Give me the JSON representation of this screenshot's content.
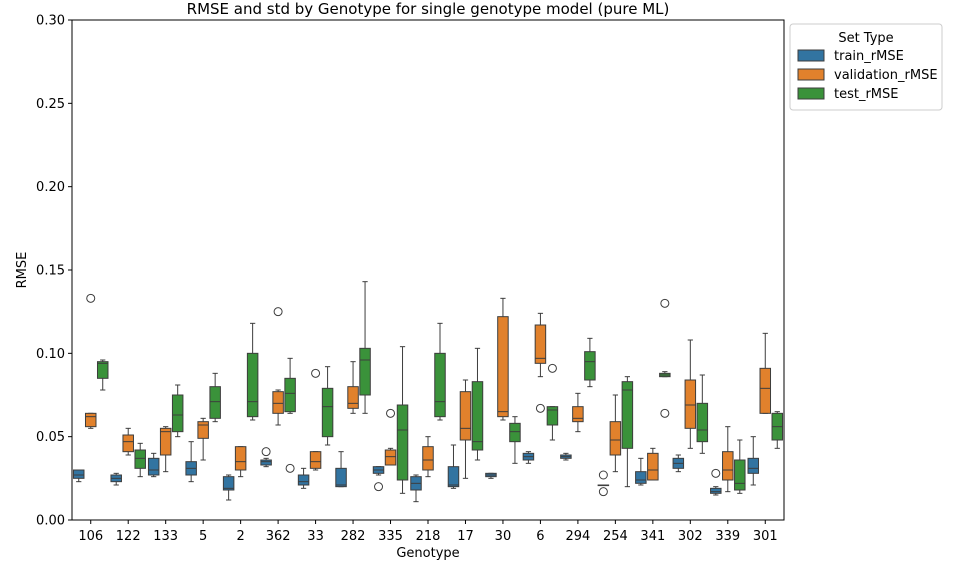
{
  "chart_data": {
    "type": "box",
    "title": "RMSE and std by Genotype for single genotype model (pure ML)",
    "xlabel": "Genotype",
    "ylabel": "RMSE",
    "ylim": [
      0,
      0.3
    ],
    "yticks": [
      "0.00",
      "0.05",
      "0.10",
      "0.15",
      "0.20",
      "0.25",
      "0.30"
    ],
    "grid": false,
    "legend": {
      "title": "Set Type",
      "placement": "outside-top-right"
    },
    "categories": [
      "106",
      "122",
      "133",
      "5",
      "2",
      "362",
      "33",
      "282",
      "335",
      "218",
      "17",
      "30",
      "6",
      "294",
      "254",
      "341",
      "302",
      "339",
      "301"
    ],
    "series": [
      {
        "name": "train_rMSE",
        "color": "#3274a1",
        "boxes": [
          {
            "whislo": 0.023,
            "q1": 0.025,
            "med": 0.027,
            "q3": 0.03,
            "whishi": 0.03,
            "fliers": []
          },
          {
            "whislo": 0.021,
            "q1": 0.023,
            "med": 0.025,
            "q3": 0.027,
            "whishi": 0.028,
            "fliers": []
          },
          {
            "whislo": 0.026,
            "q1": 0.027,
            "med": 0.03,
            "q3": 0.037,
            "whishi": 0.04,
            "fliers": []
          },
          {
            "whislo": 0.023,
            "q1": 0.027,
            "med": 0.031,
            "q3": 0.035,
            "whishi": 0.047,
            "fliers": []
          },
          {
            "whislo": 0.012,
            "q1": 0.018,
            "med": 0.019,
            "q3": 0.026,
            "whishi": 0.027,
            "fliers": []
          },
          {
            "whislo": 0.032,
            "q1": 0.033,
            "med": 0.035,
            "q3": 0.036,
            "whishi": 0.037,
            "fliers": [
              0.041
            ]
          },
          {
            "whislo": 0.019,
            "q1": 0.021,
            "med": 0.023,
            "q3": 0.027,
            "whishi": 0.031,
            "fliers": []
          },
          {
            "whislo": 0.02,
            "q1": 0.02,
            "med": 0.021,
            "q3": 0.031,
            "whishi": 0.041,
            "fliers": []
          },
          {
            "whislo": 0.027,
            "q1": 0.028,
            "med": 0.03,
            "q3": 0.032,
            "whishi": 0.032,
            "fliers": [
              0.02
            ]
          },
          {
            "whislo": 0.011,
            "q1": 0.018,
            "med": 0.022,
            "q3": 0.026,
            "whishi": 0.027,
            "fliers": []
          },
          {
            "whislo": 0.019,
            "q1": 0.02,
            "med": 0.021,
            "q3": 0.032,
            "whishi": 0.045,
            "fliers": []
          },
          {
            "whislo": 0.025,
            "q1": 0.026,
            "med": 0.027,
            "q3": 0.028,
            "whishi": 0.028,
            "fliers": []
          },
          {
            "whislo": 0.034,
            "q1": 0.036,
            "med": 0.038,
            "q3": 0.04,
            "whishi": 0.041,
            "fliers": []
          },
          {
            "whislo": 0.036,
            "q1": 0.037,
            "med": 0.038,
            "q3": 0.039,
            "whishi": 0.04,
            "fliers": []
          },
          {
            "whislo": 0.021,
            "q1": 0.021,
            "med": 0.021,
            "q3": 0.021,
            "whishi": 0.021,
            "fliers": [
              0.017,
              0.027
            ]
          },
          {
            "whislo": 0.021,
            "q1": 0.022,
            "med": 0.024,
            "q3": 0.029,
            "whishi": 0.037,
            "fliers": []
          },
          {
            "whislo": 0.029,
            "q1": 0.031,
            "med": 0.034,
            "q3": 0.037,
            "whishi": 0.039,
            "fliers": []
          },
          {
            "whislo": 0.015,
            "q1": 0.016,
            "med": 0.017,
            "q3": 0.019,
            "whishi": 0.02,
            "fliers": [
              0.028
            ]
          },
          {
            "whislo": 0.021,
            "q1": 0.028,
            "med": 0.031,
            "q3": 0.037,
            "whishi": 0.05,
            "fliers": []
          }
        ]
      },
      {
        "name": "validation_rMSE",
        "color": "#e1812c",
        "boxes": [
          {
            "whislo": 0.055,
            "q1": 0.056,
            "med": 0.062,
            "q3": 0.064,
            "whishi": 0.064,
            "fliers": [
              0.133
            ]
          },
          {
            "whislo": 0.039,
            "q1": 0.041,
            "med": 0.047,
            "q3": 0.051,
            "whishi": 0.055,
            "fliers": []
          },
          {
            "whislo": 0.029,
            "q1": 0.039,
            "med": 0.053,
            "q3": 0.055,
            "whishi": 0.056,
            "fliers": []
          },
          {
            "whislo": 0.036,
            "q1": 0.049,
            "med": 0.057,
            "q3": 0.059,
            "whishi": 0.061,
            "fliers": []
          },
          {
            "whislo": 0.026,
            "q1": 0.03,
            "med": 0.035,
            "q3": 0.044,
            "whishi": 0.044,
            "fliers": []
          },
          {
            "whislo": 0.057,
            "q1": 0.064,
            "med": 0.07,
            "q3": 0.077,
            "whishi": 0.078,
            "fliers": [
              0.125
            ]
          },
          {
            "whislo": 0.03,
            "q1": 0.031,
            "med": 0.035,
            "q3": 0.041,
            "whishi": 0.041,
            "fliers": [
              0.088
            ]
          },
          {
            "whislo": 0.064,
            "q1": 0.067,
            "med": 0.07,
            "q3": 0.08,
            "whishi": 0.095,
            "fliers": []
          },
          {
            "whislo": 0.033,
            "q1": 0.033,
            "med": 0.038,
            "q3": 0.042,
            "whishi": 0.043,
            "fliers": [
              0.064
            ]
          },
          {
            "whislo": 0.026,
            "q1": 0.03,
            "med": 0.036,
            "q3": 0.044,
            "whishi": 0.05,
            "fliers": []
          },
          {
            "whislo": 0.025,
            "q1": 0.048,
            "med": 0.055,
            "q3": 0.077,
            "whishi": 0.084,
            "fliers": []
          },
          {
            "whislo": 0.06,
            "q1": 0.062,
            "med": 0.065,
            "q3": 0.122,
            "whishi": 0.133,
            "fliers": []
          },
          {
            "whislo": 0.086,
            "q1": 0.094,
            "med": 0.097,
            "q3": 0.117,
            "whishi": 0.124,
            "fliers": [
              0.067
            ]
          },
          {
            "whislo": 0.053,
            "q1": 0.059,
            "med": 0.061,
            "q3": 0.068,
            "whishi": 0.076,
            "fliers": []
          },
          {
            "whislo": 0.029,
            "q1": 0.039,
            "med": 0.048,
            "q3": 0.059,
            "whishi": 0.075,
            "fliers": []
          },
          {
            "whislo": 0.024,
            "q1": 0.024,
            "med": 0.03,
            "q3": 0.04,
            "whishi": 0.043,
            "fliers": []
          },
          {
            "whislo": 0.043,
            "q1": 0.055,
            "med": 0.069,
            "q3": 0.084,
            "whishi": 0.108,
            "fliers": []
          },
          {
            "whislo": 0.017,
            "q1": 0.024,
            "med": 0.03,
            "q3": 0.041,
            "whishi": 0.056,
            "fliers": []
          },
          {
            "whislo": 0.064,
            "q1": 0.064,
            "med": 0.079,
            "q3": 0.091,
            "whishi": 0.112,
            "fliers": []
          }
        ]
      },
      {
        "name": "test_rMSE",
        "color": "#3a923a",
        "boxes": [
          {
            "whislo": 0.078,
            "q1": 0.085,
            "med": 0.094,
            "q3": 0.095,
            "whishi": 0.096,
            "fliers": []
          },
          {
            "whislo": 0.026,
            "q1": 0.031,
            "med": 0.037,
            "q3": 0.042,
            "whishi": 0.046,
            "fliers": []
          },
          {
            "whislo": 0.05,
            "q1": 0.053,
            "med": 0.063,
            "q3": 0.075,
            "whishi": 0.081,
            "fliers": []
          },
          {
            "whislo": 0.059,
            "q1": 0.061,
            "med": 0.071,
            "q3": 0.08,
            "whishi": 0.088,
            "fliers": []
          },
          {
            "whislo": 0.06,
            "q1": 0.062,
            "med": 0.071,
            "q3": 0.1,
            "whishi": 0.118,
            "fliers": []
          },
          {
            "whislo": 0.064,
            "q1": 0.065,
            "med": 0.076,
            "q3": 0.085,
            "whishi": 0.097,
            "fliers": [
              0.031
            ]
          },
          {
            "whislo": 0.045,
            "q1": 0.05,
            "med": 0.068,
            "q3": 0.079,
            "whishi": 0.092,
            "fliers": []
          },
          {
            "whislo": 0.064,
            "q1": 0.075,
            "med": 0.096,
            "q3": 0.103,
            "whishi": 0.143,
            "fliers": []
          },
          {
            "whislo": 0.016,
            "q1": 0.024,
            "med": 0.054,
            "q3": 0.069,
            "whishi": 0.104,
            "fliers": []
          },
          {
            "whislo": 0.06,
            "q1": 0.062,
            "med": 0.071,
            "q3": 0.1,
            "whishi": 0.118,
            "fliers": []
          },
          {
            "whislo": 0.036,
            "q1": 0.042,
            "med": 0.047,
            "q3": 0.083,
            "whishi": 0.103,
            "fliers": []
          },
          {
            "whislo": 0.034,
            "q1": 0.047,
            "med": 0.053,
            "q3": 0.058,
            "whishi": 0.062,
            "fliers": []
          },
          {
            "whislo": 0.048,
            "q1": 0.057,
            "med": 0.066,
            "q3": 0.068,
            "whishi": 0.068,
            "fliers": [
              0.091
            ]
          },
          {
            "whislo": 0.08,
            "q1": 0.084,
            "med": 0.095,
            "q3": 0.101,
            "whishi": 0.109,
            "fliers": []
          },
          {
            "whislo": 0.02,
            "q1": 0.043,
            "med": 0.078,
            "q3": 0.083,
            "whishi": 0.086,
            "fliers": []
          },
          {
            "whislo": 0.086,
            "q1": 0.086,
            "med": 0.087,
            "q3": 0.088,
            "whishi": 0.089,
            "fliers": [
              0.064,
              0.13
            ]
          },
          {
            "whislo": 0.04,
            "q1": 0.047,
            "med": 0.054,
            "q3": 0.07,
            "whishi": 0.087,
            "fliers": []
          },
          {
            "whislo": 0.016,
            "q1": 0.018,
            "med": 0.022,
            "q3": 0.036,
            "whishi": 0.048,
            "fliers": []
          },
          {
            "whislo": 0.043,
            "q1": 0.048,
            "med": 0.056,
            "q3": 0.064,
            "whishi": 0.065,
            "fliers": []
          }
        ]
      }
    ]
  }
}
